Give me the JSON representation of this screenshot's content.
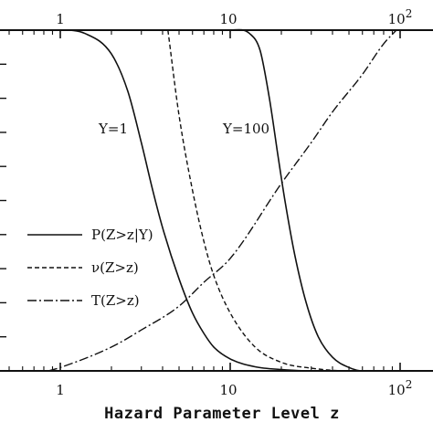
{
  "chart_data": {
    "type": "line",
    "x_scale": "log",
    "xlim": [
      0.3,
      120
    ],
    "ylim": [
      0,
      1
    ],
    "xlabel": "Hazard Parameter Level z",
    "ylabel": "",
    "x_ticks_bottom": [
      "1",
      "10",
      "10^2"
    ],
    "x_ticks_top": [
      "1",
      "10",
      "10^2"
    ],
    "grid": false,
    "series": [
      {
        "name": "P(Z>z|Y)",
        "style": "solid",
        "annotation": "Y=1",
        "points": [
          [
            0.3,
            1.0
          ],
          [
            1.0,
            1.0
          ],
          [
            1.4,
            0.99
          ],
          [
            2.0,
            0.93
          ],
          [
            2.5,
            0.82
          ],
          [
            3.0,
            0.67
          ],
          [
            3.5,
            0.53
          ],
          [
            4.0,
            0.42
          ],
          [
            5.0,
            0.27
          ],
          [
            6.0,
            0.17
          ],
          [
            7.0,
            0.11
          ],
          [
            8.0,
            0.07
          ],
          [
            10.0,
            0.035
          ],
          [
            14.0,
            0.012
          ],
          [
            20.0,
            0.004
          ],
          [
            30.0,
            0.0
          ],
          [
            120.0,
            0.0
          ]
        ]
      },
      {
        "name": "P(Z>z|Y)",
        "style": "solid",
        "annotation": "Y=100",
        "points": [
          [
            0.3,
            1.0
          ],
          [
            10.0,
            1.0
          ],
          [
            13.0,
            0.99
          ],
          [
            15.0,
            0.94
          ],
          [
            17.0,
            0.8
          ],
          [
            19.0,
            0.64
          ],
          [
            21.0,
            0.5
          ],
          [
            24.0,
            0.34
          ],
          [
            28.0,
            0.2
          ],
          [
            33.0,
            0.1
          ],
          [
            40.0,
            0.04
          ],
          [
            50.0,
            0.01
          ],
          [
            60.0,
            0.0
          ],
          [
            120.0,
            0.0
          ]
        ]
      },
      {
        "name": "ν(Z>z)",
        "style": "dashed",
        "points": [
          [
            4.3,
            1.0
          ],
          [
            5.0,
            0.75
          ],
          [
            6.0,
            0.53
          ],
          [
            7.0,
            0.38
          ],
          [
            8.0,
            0.28
          ],
          [
            10.0,
            0.17
          ],
          [
            14.0,
            0.07
          ],
          [
            20.0,
            0.025
          ],
          [
            30.0,
            0.008
          ],
          [
            50.0,
            0.0
          ],
          [
            80.0,
            0.0
          ]
        ]
      },
      {
        "name": "T(Z>z)",
        "style": "dashdot",
        "points": [
          [
            0.85,
            0.0
          ],
          [
            1.0,
            0.01
          ],
          [
            2.0,
            0.07
          ],
          [
            3.0,
            0.12
          ],
          [
            5.0,
            0.19
          ],
          [
            7.0,
            0.26
          ],
          [
            10.0,
            0.33
          ],
          [
            20.0,
            0.55
          ],
          [
            30.0,
            0.67
          ],
          [
            40.0,
            0.76
          ],
          [
            60.0,
            0.87
          ],
          [
            80.0,
            0.96
          ],
          [
            95.0,
            1.0
          ]
        ]
      }
    ],
    "legend": {
      "placement": "lower-left",
      "entries": [
        {
          "label": "P(Z>z|Y)",
          "style": "solid"
        },
        {
          "label": "ν(Z>z)",
          "style": "dashed"
        },
        {
          "label": "T(Z>z)",
          "style": "dashdot"
        }
      ]
    }
  }
}
